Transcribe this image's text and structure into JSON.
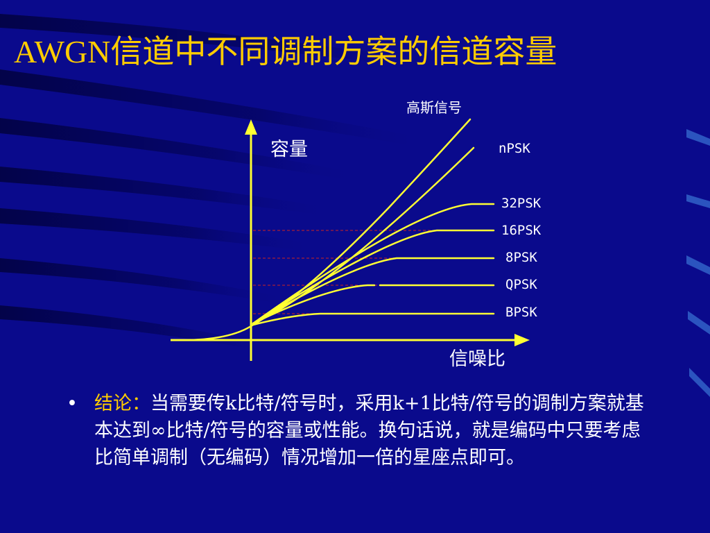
{
  "title": "AWGN信道中不同调制方案的信道容量",
  "diagram": {
    "y_axis_label": "容量",
    "x_axis_label": "信噪比",
    "curves": [
      {
        "id": "gaussian",
        "label": "高斯信号"
      },
      {
        "id": "npsk",
        "label": "nPSK"
      },
      {
        "id": "32psk",
        "label": "32PSK"
      },
      {
        "id": "16psk",
        "label": "16PSK"
      },
      {
        "id": "8psk",
        "label": "8PSK"
      },
      {
        "id": "qpsk",
        "label": "QPSK"
      },
      {
        "id": "bpsk",
        "label": "BPSK"
      }
    ]
  },
  "conclusion": {
    "bullet": "•",
    "label": "结论：",
    "text": "当需要传k比特/符号时，采用k+1比特/符号的调制方案就基本达到∞比特/符号的容量或性能。换句话说，就是编码中只要考虑比简单调制（无编码）情况增加一倍的星座点即可。"
  },
  "colors": {
    "background": "#0a0a8c",
    "title": "#ffcc00",
    "curve": "#ffff33",
    "dashed_guide": "#cc2222",
    "text": "#ffffff"
  }
}
